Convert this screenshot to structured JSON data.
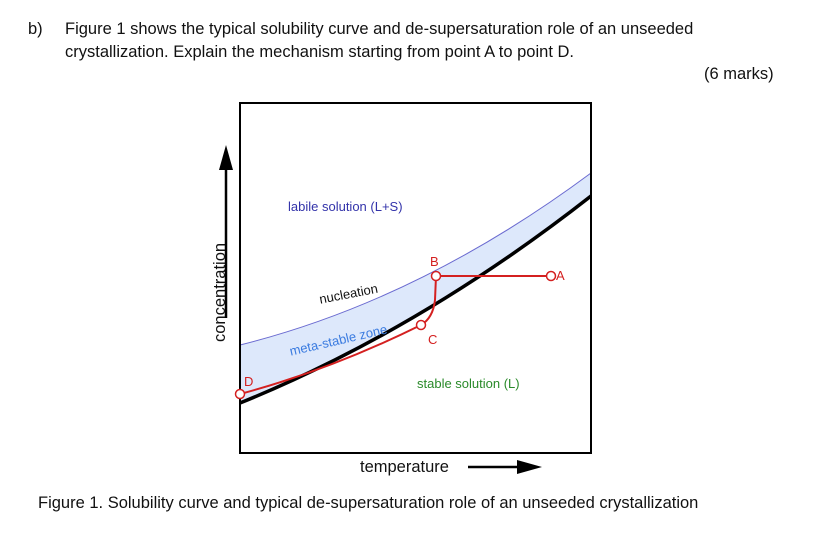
{
  "question": {
    "label": "b)",
    "line1": "Figure 1 shows the typical solubility curve and de-supersaturation role of an unseeded",
    "line2": "crystallization. Explain the mechanism starting from point A to point D.",
    "marks": "(6 marks)"
  },
  "figure": {
    "labile": "labile solution (L+S)",
    "nucleation": "nucleation",
    "metastable": "meta-stable zone",
    "stable": "stable solution (L)",
    "points": {
      "A": "A",
      "B": "B",
      "C": "C",
      "D": "D"
    },
    "xlabel": "temperature",
    "ylabel": "concentration",
    "colors": {
      "labile": "#3333aa",
      "metastable": "#3a7be0",
      "stable": "#2a8a2a",
      "path": "#d42020",
      "zone_fill": "#dde8fb"
    },
    "caption": "Figure 1. Solubility curve and typical de-supersaturation role of an unseeded crystallization"
  }
}
